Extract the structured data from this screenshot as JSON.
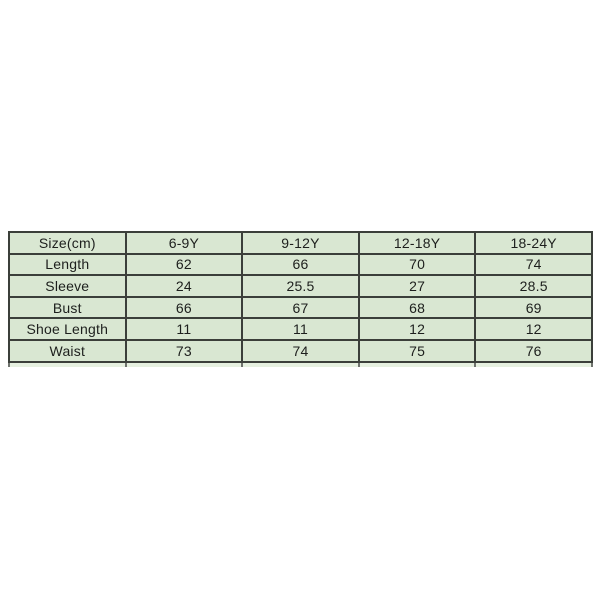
{
  "page": {
    "background": "#ffffff"
  },
  "colors": {
    "cell_background": "#d9e7d2",
    "border": "#3b3f3a",
    "text": "#1d1f1d"
  },
  "chart_data": {
    "type": "table",
    "title": "Size(cm)",
    "columns": [
      "Size(cm)",
      "6-9Y",
      "9-12Y",
      "12-18Y",
      "18-24Y"
    ],
    "rows": [
      [
        "Length",
        62,
        66,
        70,
        74
      ],
      [
        "Sleeve",
        24,
        25.5,
        27,
        28.5
      ],
      [
        "Bust",
        66,
        67,
        68,
        69
      ],
      [
        "Shoe Length",
        11,
        11,
        12,
        12
      ],
      [
        "Waist",
        73,
        74,
        75,
        76
      ]
    ]
  },
  "table": {
    "header": [
      "Size(cm)",
      "6-9Y",
      "9-12Y",
      "12-18Y",
      "18-24Y"
    ],
    "rows": [
      {
        "label": "Length",
        "values": [
          "62",
          "66",
          "70",
          "74"
        ]
      },
      {
        "label": "Sleeve",
        "values": [
          "24",
          "25.5",
          "27",
          "28.5"
        ]
      },
      {
        "label": "Bust",
        "values": [
          "66",
          "67",
          "68",
          "69"
        ]
      },
      {
        "label": "Shoe Length",
        "values": [
          "11",
          "11",
          "12",
          "12"
        ]
      },
      {
        "label": "Waist",
        "values": [
          "73",
          "74",
          "75",
          "76"
        ]
      }
    ]
  }
}
